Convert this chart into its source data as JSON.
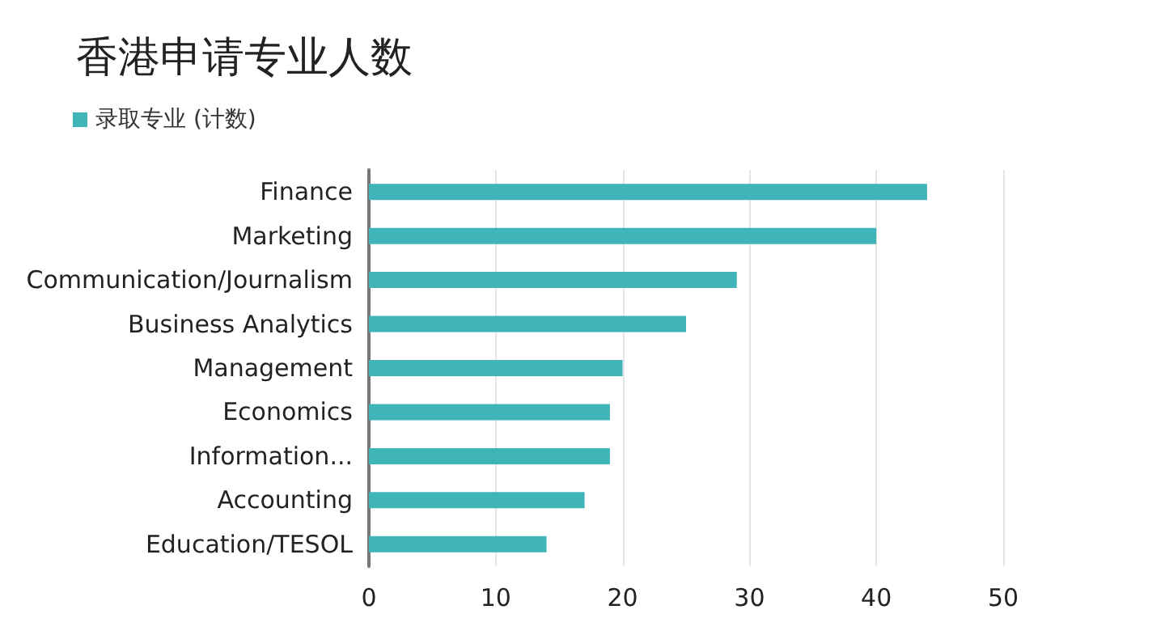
{
  "chart_data": {
    "type": "bar",
    "orientation": "horizontal",
    "title": "香港申请专业人数",
    "categories": [
      "Finance",
      "Marketing",
      "Communication/Journalism",
      "Business Analytics",
      "Management",
      "Economics",
      "Information...",
      "Accounting",
      "Education/TESOL"
    ],
    "series": [
      {
        "name": "录取专业 (计数)",
        "color": "#3fb4b9",
        "values": [
          44,
          40,
          29,
          25,
          20,
          19,
          19,
          17,
          14
        ]
      }
    ],
    "xlim": [
      0,
      50
    ],
    "xticks": [
      0,
      10,
      20,
      30,
      40,
      50
    ],
    "grid": "x",
    "legend": "top left"
  }
}
